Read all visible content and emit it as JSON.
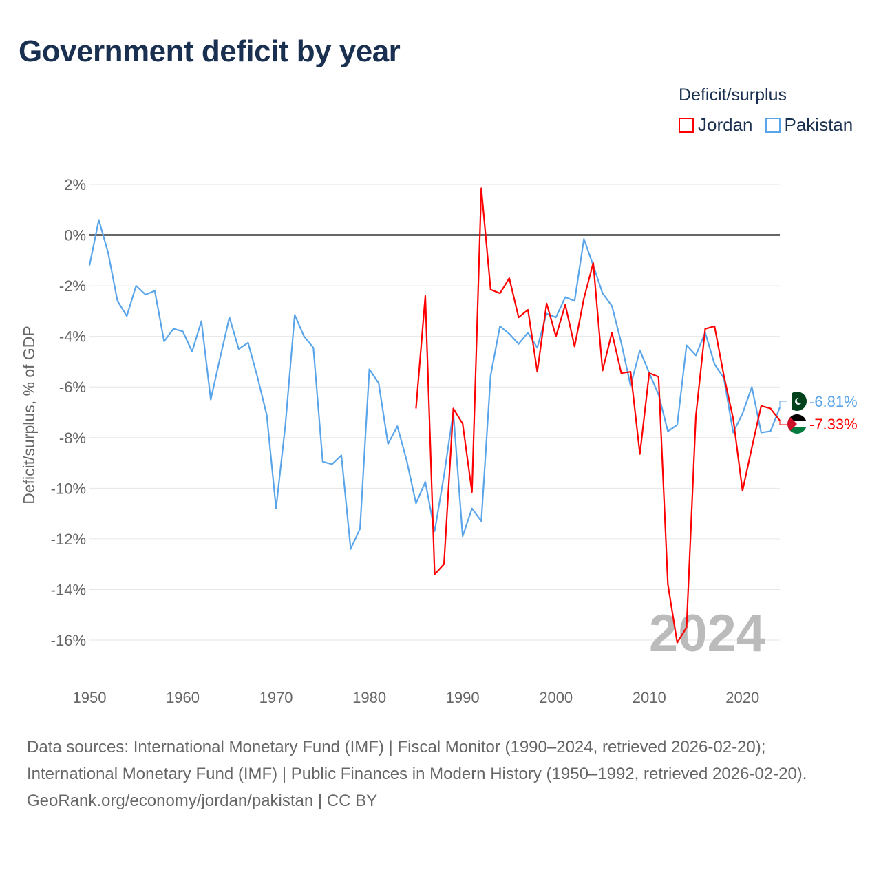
{
  "title": "Government deficit by year",
  "legend": {
    "title": "Deficit/surplus",
    "items": [
      {
        "label": "Jordan",
        "color": "#ff0000"
      },
      {
        "label": "Pakistan",
        "color": "#5aa5ea"
      }
    ]
  },
  "chart_data": {
    "type": "line",
    "title": "Government deficit by year",
    "xlabel": "",
    "ylabel": "Deficit/surplus, % of GDP",
    "xlim": [
      1950,
      2024
    ],
    "ylim": [
      -16,
      2
    ],
    "x_ticks": [
      "1950",
      "1960",
      "1970",
      "1980",
      "1990",
      "2000",
      "2010",
      "2020"
    ],
    "y_ticks": [
      "2%",
      "0%",
      "-2%",
      "-4%",
      "-6%",
      "-8%",
      "-10%",
      "-12%",
      "-14%",
      "-16%"
    ],
    "y_tick_values": [
      2,
      0,
      -2,
      -4,
      -6,
      -8,
      -10,
      -12,
      -14,
      -16
    ],
    "x_tick_values": [
      1950,
      1960,
      1970,
      1980,
      1990,
      2000,
      2010,
      2020
    ],
    "year_watermark": "2024",
    "grid": true,
    "legend_position": "top-right",
    "series": [
      {
        "name": "Pakistan",
        "color": "#5aa5ea",
        "end_label": "-6.81%",
        "start_year": 1950,
        "values": [
          -1.2,
          0.6,
          -0.7,
          -2.6,
          -3.2,
          -2.0,
          -2.35,
          -2.2,
          -4.2,
          -3.7,
          -3.8,
          -4.6,
          -3.4,
          -6.5,
          -4.85,
          -3.25,
          -4.5,
          -4.25,
          -5.6,
          -7.1,
          -10.8,
          -7.5,
          -3.15,
          -4.0,
          -4.45,
          -8.95,
          -9.05,
          -8.7,
          -12.4,
          -11.6,
          -5.3,
          -5.85,
          -8.25,
          -7.55,
          -8.9,
          -10.6,
          -9.75,
          -11.7,
          -9.5,
          -7.0,
          -11.9,
          -10.8,
          -11.3,
          -5.55,
          -3.6,
          -3.9,
          -4.3,
          -3.85,
          -4.45,
          -3.1,
          -3.25,
          -2.45,
          -2.6,
          -0.15,
          -1.2,
          -2.3,
          -2.8,
          -4.25,
          -5.95,
          -4.55,
          -5.45,
          -6.3,
          -7.75,
          -7.5,
          -4.35,
          -4.75,
          -3.85,
          -5.1,
          -5.65,
          -7.8,
          -7.05,
          -6.0,
          -7.8,
          -7.75,
          -6.81
        ]
      },
      {
        "name": "Jordan",
        "color": "#ff0000",
        "end_label": "-7.33%",
        "start_year": 1985,
        "values": [
          -6.85,
          -2.4,
          -13.4,
          -13.0,
          -6.85,
          -7.45,
          -10.15,
          1.85,
          -2.15,
          -2.3,
          -1.7,
          -3.25,
          -2.95,
          -5.4,
          -2.7,
          -4.0,
          -2.75,
          -4.4,
          -2.5,
          -1.1,
          -5.35,
          -3.85,
          -5.45,
          -5.4,
          -8.65,
          -5.45,
          -5.6,
          -13.8,
          -16.1,
          -15.5,
          -7.15,
          -3.7,
          -3.6,
          -5.55,
          -7.25,
          -10.1,
          -8.4,
          -6.75,
          -6.85,
          -7.33
        ]
      }
    ]
  },
  "footer": {
    "sources": "Data sources: International Monetary Fund (IMF) | Fiscal Monitor (1990–2024, retrieved 2026-02-20); International Monetary Fund (IMF) | Public Finances in Modern History (1950–1992, retrieved 2026-02-20).",
    "credit": "GeoRank.org/economy/jordan/pakistan | CC BY"
  }
}
